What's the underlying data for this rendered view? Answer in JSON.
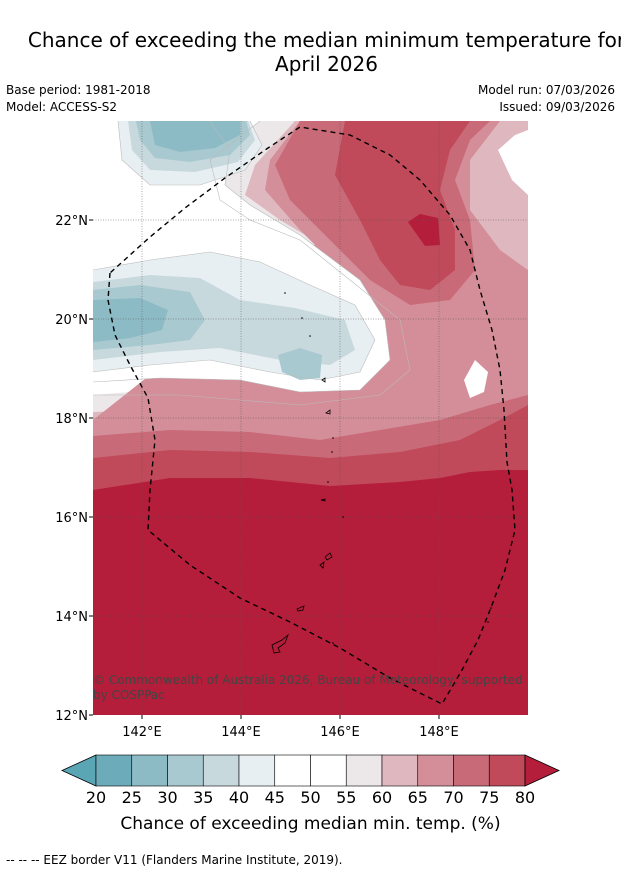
{
  "title_line1": "Chance of exceeding the median minimum temperature for",
  "title_line2": "April 2026",
  "base_period": "Base period: 1981-2018",
  "model": "Model: ACCESS-S2",
  "model_run": "Model run: 07/03/2026",
  "issued": "Issued: 09/03/2026",
  "copyright_line1": "© Commonwealth of Australia 2026, Bureau of Meteorology, supported",
  "copyright_line2": "by COSPPac",
  "lat_labels": [
    "22°N",
    "20°N",
    "18°N",
    "16°N",
    "14°N",
    "12°N"
  ],
  "lon_labels": [
    "142°E",
    "144°E",
    "146°E",
    "148°E"
  ],
  "colorbar": {
    "ticks": [
      "20",
      "25",
      "30",
      "35",
      "40",
      "45",
      "50",
      "55",
      "60",
      "65",
      "70",
      "75",
      "80"
    ],
    "colors": [
      "#5aa6b5",
      "#6cabb9",
      "#8cbbc6",
      "#a8c9d0",
      "#c8d9de",
      "#e8eff2",
      "#ffffff",
      "#ffffff",
      "#ece8ea",
      "#dfb8bf",
      "#d48e99",
      "#c96a78",
      "#c0495a",
      "#b41e3a"
    ],
    "title": "Chance of exceeding median min. temp. (%)"
  },
  "footnote": "--  --  -- EEZ border V11 (Flanders Marine Institute, 2019).",
  "palette": {
    "deep_red": "#b41e3a",
    "red": "#c0495a",
    "mid_red": "#c96a78",
    "pink": "#d48e99",
    "light_pink": "#dfb8bf",
    "pale": "#ece8ea",
    "white": "#ffffff",
    "pale_blue": "#e8eff2",
    "light_blue": "#c8d9de",
    "blue": "#a8c9d0",
    "mid_blue": "#8cbbc6"
  }
}
